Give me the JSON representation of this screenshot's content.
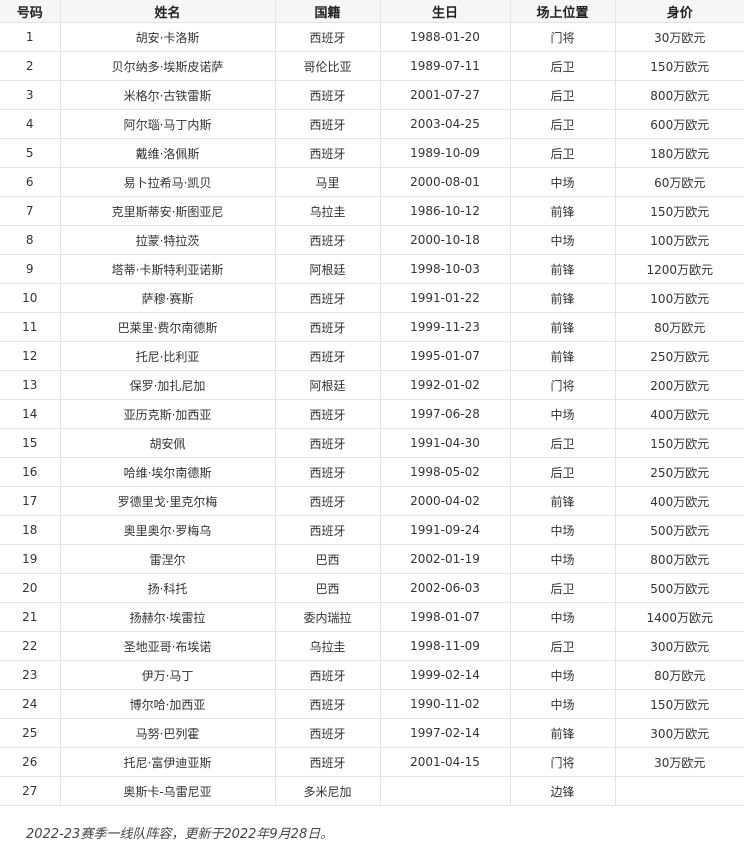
{
  "table": {
    "headers": [
      "号码",
      "姓名",
      "国籍",
      "生日",
      "场上位置",
      "身价"
    ],
    "rows": [
      [
        "1",
        "胡安·卡洛斯",
        "西班牙",
        "1988-01-20",
        "门将",
        "30万欧元"
      ],
      [
        "2",
        "贝尔纳多·埃斯皮诺萨",
        "哥伦比亚",
        "1989-07-11",
        "后卫",
        "150万欧元"
      ],
      [
        "3",
        "米格尔·古铁雷斯",
        "西班牙",
        "2001-07-27",
        "后卫",
        "800万欧元"
      ],
      [
        "4",
        "阿尔瑙·马丁内斯",
        "西班牙",
        "2003-04-25",
        "后卫",
        "600万欧元"
      ],
      [
        "5",
        "戴维·洛佩斯",
        "西班牙",
        "1989-10-09",
        "后卫",
        "180万欧元"
      ],
      [
        "6",
        "易卜拉希马·凯贝",
        "马里",
        "2000-08-01",
        "中场",
        "60万欧元"
      ],
      [
        "7",
        "克里斯蒂安·斯图亚尼",
        "乌拉圭",
        "1986-10-12",
        "前锋",
        "150万欧元"
      ],
      [
        "8",
        "拉蒙·特拉茨",
        "西班牙",
        "2000-10-18",
        "中场",
        "100万欧元"
      ],
      [
        "9",
        "塔蒂·卡斯特利亚诺斯",
        "阿根廷",
        "1998-10-03",
        "前锋",
        "1200万欧元"
      ],
      [
        "10",
        "萨穆·赛斯",
        "西班牙",
        "1991-01-22",
        "前锋",
        "100万欧元"
      ],
      [
        "11",
        "巴莱里·费尔南德斯",
        "西班牙",
        "1999-11-23",
        "前锋",
        "80万欧元"
      ],
      [
        "12",
        "托尼·比利亚",
        "西班牙",
        "1995-01-07",
        "前锋",
        "250万欧元"
      ],
      [
        "13",
        "保罗·加扎尼加",
        "阿根廷",
        "1992-01-02",
        "门将",
        "200万欧元"
      ],
      [
        "14",
        "亚历克斯·加西亚",
        "西班牙",
        "1997-06-28",
        "中场",
        "400万欧元"
      ],
      [
        "15",
        "胡安佩",
        "西班牙",
        "1991-04-30",
        "后卫",
        "150万欧元"
      ],
      [
        "16",
        "哈维·埃尔南德斯",
        "西班牙",
        "1998-05-02",
        "后卫",
        "250万欧元"
      ],
      [
        "17",
        "罗德里戈·里克尔梅",
        "西班牙",
        "2000-04-02",
        "前锋",
        "400万欧元"
      ],
      [
        "18",
        "奥里奥尔·罗梅乌",
        "西班牙",
        "1991-09-24",
        "中场",
        "500万欧元"
      ],
      [
        "19",
        "雷涅尔",
        "巴西",
        "2002-01-19",
        "中场",
        "800万欧元"
      ],
      [
        "20",
        "扬·科托",
        "巴西",
        "2002-06-03",
        "后卫",
        "500万欧元"
      ],
      [
        "21",
        "扬赫尔·埃雷拉",
        "委内瑞拉",
        "1998-01-07",
        "中场",
        "1400万欧元"
      ],
      [
        "22",
        "圣地亚哥·布埃诺",
        "乌拉圭",
        "1998-11-09",
        "后卫",
        "300万欧元"
      ],
      [
        "23",
        "伊万·马丁",
        "西班牙",
        "1999-02-14",
        "中场",
        "80万欧元"
      ],
      [
        "24",
        "博尔哈·加西亚",
        "西班牙",
        "1990-11-02",
        "中场",
        "150万欧元"
      ],
      [
        "25",
        "马努·巴列霍",
        "西班牙",
        "1997-02-14",
        "前锋",
        "300万欧元"
      ],
      [
        "26",
        "托尼·富伊迪亚斯",
        "西班牙",
        "2001-04-15",
        "门将",
        "30万欧元"
      ],
      [
        "27",
        "奥斯卡-乌雷尼亚",
        "多米尼加",
        "",
        "边锋",
        ""
      ]
    ]
  },
  "caption": "2022-23赛季一线队阵容，更新于2022年9月28日。"
}
